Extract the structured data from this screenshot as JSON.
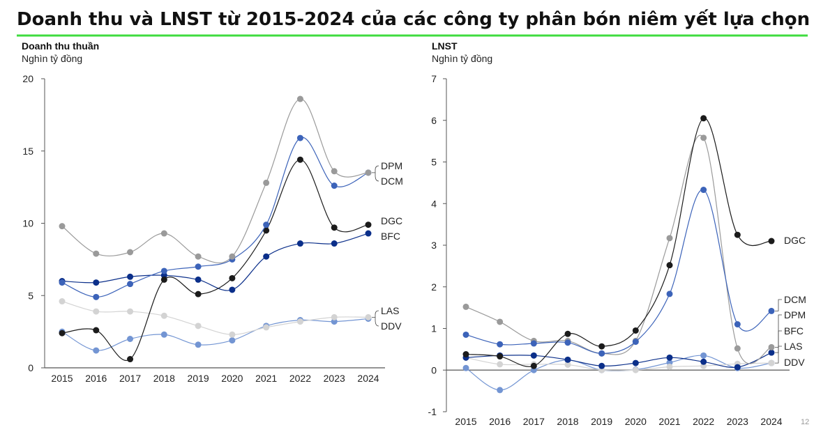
{
  "title": "Doanh thu và LNST từ 2015-2024 của các công ty phân bón niêm yết lựa chọn",
  "page_number": "12",
  "colors": {
    "accent_line": "#3fdc3f",
    "DPM": "#9a9a9a",
    "DCM": "#3c63b9",
    "DGC": "#1b1b1b",
    "BFC": "#0b2f8a",
    "LAS": "#d3d3d3",
    "DDV": "#7395d3"
  },
  "chart_data": [
    {
      "type": "line",
      "title": "Doanh thu thuần",
      "ylabel": "Nghìn tỷ đồng",
      "ylim": [
        0,
        20
      ],
      "yticks": [
        "0",
        "5",
        "10",
        "15",
        "20"
      ],
      "categories": [
        "2015",
        "2016",
        "2017",
        "2018",
        "2019",
        "2020",
        "2021",
        "2022",
        "2023",
        "2024"
      ],
      "grid": false,
      "legend": "end-of-line labels, right",
      "series": [
        {
          "name": "DPM",
          "values": [
            9.8,
            7.9,
            8.0,
            9.3,
            7.7,
            7.7,
            12.8,
            18.6,
            13.6,
            13.5
          ]
        },
        {
          "name": "DCM",
          "values": [
            5.9,
            4.9,
            5.8,
            6.7,
            7.0,
            7.5,
            9.9,
            15.9,
            12.6,
            13.5
          ]
        },
        {
          "name": "DGC",
          "values": [
            2.4,
            2.6,
            0.6,
            6.1,
            5.1,
            6.2,
            9.5,
            14.4,
            9.7,
            9.9
          ]
        },
        {
          "name": "BFC",
          "values": [
            6.0,
            5.9,
            6.3,
            6.4,
            6.1,
            5.4,
            7.7,
            8.6,
            8.6,
            9.3
          ]
        },
        {
          "name": "LAS",
          "values": [
            4.6,
            3.9,
            3.9,
            3.6,
            2.9,
            2.3,
            2.8,
            3.2,
            3.5,
            3.5
          ]
        },
        {
          "name": "DDV",
          "values": [
            2.5,
            1.2,
            2.0,
            2.3,
            1.6,
            1.9,
            2.9,
            3.3,
            3.2,
            3.4
          ]
        }
      ]
    },
    {
      "type": "line",
      "title": "LNST",
      "ylabel": "Nghìn tỷ đồng",
      "ylim": [
        -1,
        7
      ],
      "yticks": [
        "-1",
        "0",
        "1",
        "2",
        "3",
        "4",
        "5",
        "6",
        "7"
      ],
      "categories": [
        "2015",
        "2016",
        "2017",
        "2018",
        "2019",
        "2020",
        "2021",
        "2022",
        "2023",
        "2024"
      ],
      "grid": false,
      "legend": "end-of-line labels, right",
      "series": [
        {
          "name": "DGC",
          "values": [
            0.38,
            0.33,
            0.1,
            0.87,
            0.57,
            0.95,
            2.52,
            6.05,
            3.25,
            3.1
          ]
        },
        {
          "name": "DCM",
          "values": [
            0.85,
            0.62,
            0.64,
            0.66,
            0.4,
            0.68,
            1.83,
            4.33,
            1.1,
            1.42
          ]
        },
        {
          "name": "DPM",
          "values": [
            1.52,
            1.16,
            0.7,
            0.7,
            0.4,
            0.7,
            3.17,
            5.58,
            0.52,
            0.55
          ]
        },
        {
          "name": "BFC",
          "values": [
            0.3,
            0.35,
            0.35,
            0.25,
            0.1,
            0.17,
            0.3,
            0.2,
            0.07,
            0.42
          ]
        },
        {
          "name": "LAS",
          "values": [
            0.3,
            0.14,
            0.14,
            0.13,
            0.0,
            0.0,
            0.08,
            0.1,
            0.15,
            0.17
          ]
        },
        {
          "name": "DDV",
          "values": [
            0.05,
            -0.48,
            0.0,
            0.24,
            0.0,
            0.01,
            0.18,
            0.35,
            0.05,
            0.17
          ]
        }
      ]
    }
  ]
}
